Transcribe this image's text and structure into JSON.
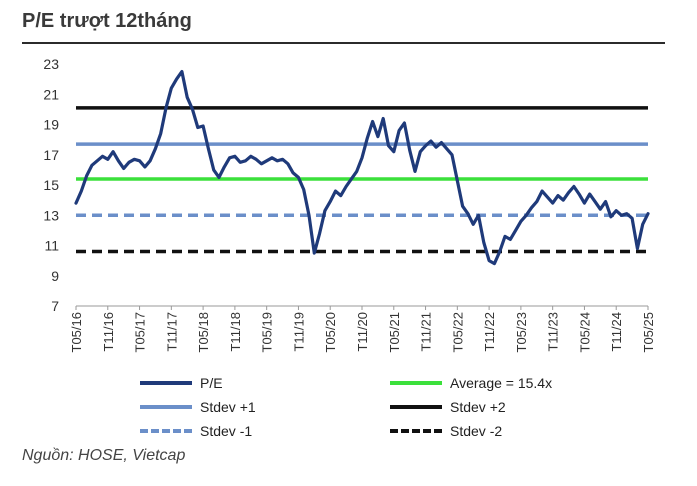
{
  "title": "P/E trượt 12tháng",
  "source": "Nguồn: HOSE, Vietcap",
  "colors": {
    "pe": "#1f3a7a",
    "average": "#3be03b",
    "stdev_plus1": "#6b8fc9",
    "stdev_plus2": "#111111",
    "stdev_minus1": "#6b8fc9",
    "stdev_minus2": "#111111"
  },
  "legend": [
    {
      "key": "pe",
      "label": "P/E",
      "style": "solid"
    },
    {
      "key": "average",
      "label": "Average = 15.4x",
      "style": "solid"
    },
    {
      "key": "stdev_plus1",
      "label": "Stdev +1",
      "style": "solid"
    },
    {
      "key": "stdev_plus2",
      "label": "Stdev +2",
      "style": "solid"
    },
    {
      "key": "stdev_minus1",
      "label": "Stdev -1",
      "style": "dashed"
    },
    {
      "key": "stdev_minus2",
      "label": "Stdev -2",
      "style": "dashed"
    }
  ],
  "chart_data": {
    "type": "line",
    "ylim": [
      7,
      23
    ],
    "yticks": [
      7,
      9,
      11,
      13,
      15,
      17,
      19,
      21,
      23
    ],
    "xlim": [
      0,
      108
    ],
    "xticks": [
      {
        "label": "T05/16",
        "t": 0
      },
      {
        "label": "T11/16",
        "t": 6
      },
      {
        "label": "T05/17",
        "t": 12
      },
      {
        "label": "T11/17",
        "t": 18
      },
      {
        "label": "T05/18",
        "t": 24
      },
      {
        "label": "T11/18",
        "t": 30
      },
      {
        "label": "T05/19",
        "t": 36
      },
      {
        "label": "T11/19",
        "t": 42
      },
      {
        "label": "T05/20",
        "t": 48
      },
      {
        "label": "T11/20",
        "t": 54
      },
      {
        "label": "T05/21",
        "t": 60
      },
      {
        "label": "T11/21",
        "t": 66
      },
      {
        "label": "T05/22",
        "t": 72
      },
      {
        "label": "T11/22",
        "t": 78
      },
      {
        "label": "T05/23",
        "t": 84
      },
      {
        "label": "T11/23",
        "t": 90
      },
      {
        "label": "T05/24",
        "t": 96
      },
      {
        "label": "T11/24",
        "t": 102
      },
      {
        "label": "T05/25",
        "t": 108
      }
    ],
    "reference_lines": [
      {
        "key": "stdev_plus2",
        "value": 20.1,
        "style": "solid"
      },
      {
        "key": "stdev_plus1",
        "value": 17.7,
        "style": "solid"
      },
      {
        "key": "average",
        "value": 15.4,
        "style": "solid"
      },
      {
        "key": "stdev_minus1",
        "value": 13.0,
        "style": "dashed"
      },
      {
        "key": "stdev_minus2",
        "value": 10.6,
        "style": "dashed"
      }
    ],
    "series": [
      {
        "key": "pe",
        "name": "P/E",
        "points": [
          [
            0,
            13.8
          ],
          [
            1,
            14.6
          ],
          [
            2,
            15.6
          ],
          [
            3,
            16.3
          ],
          [
            4,
            16.6
          ],
          [
            5,
            16.9
          ],
          [
            6,
            16.7
          ],
          [
            7,
            17.2
          ],
          [
            8,
            16.6
          ],
          [
            9,
            16.1
          ],
          [
            10,
            16.5
          ],
          [
            11,
            16.7
          ],
          [
            12,
            16.6
          ],
          [
            13,
            16.2
          ],
          [
            14,
            16.6
          ],
          [
            15,
            17.4
          ],
          [
            16,
            18.4
          ],
          [
            17,
            20.1
          ],
          [
            18,
            21.4
          ],
          [
            19,
            22.0
          ],
          [
            20,
            22.5
          ],
          [
            21,
            20.8
          ],
          [
            22,
            20.0
          ],
          [
            23,
            18.8
          ],
          [
            24,
            18.9
          ],
          [
            25,
            17.4
          ],
          [
            26,
            16.0
          ],
          [
            27,
            15.5
          ],
          [
            28,
            16.2
          ],
          [
            29,
            16.8
          ],
          [
            30,
            16.9
          ],
          [
            31,
            16.5
          ],
          [
            32,
            16.6
          ],
          [
            33,
            16.9
          ],
          [
            34,
            16.7
          ],
          [
            35,
            16.4
          ],
          [
            36,
            16.6
          ],
          [
            37,
            16.8
          ],
          [
            38,
            16.6
          ],
          [
            39,
            16.7
          ],
          [
            40,
            16.4
          ],
          [
            41,
            15.8
          ],
          [
            42,
            15.5
          ],
          [
            43,
            14.7
          ],
          [
            44,
            13.0
          ],
          [
            45,
            10.5
          ],
          [
            46,
            11.8
          ],
          [
            47,
            13.3
          ],
          [
            48,
            13.9
          ],
          [
            49,
            14.6
          ],
          [
            50,
            14.3
          ],
          [
            51,
            14.9
          ],
          [
            52,
            15.4
          ],
          [
            53,
            15.9
          ],
          [
            54,
            16.8
          ],
          [
            55,
            18.1
          ],
          [
            56,
            19.2
          ],
          [
            57,
            18.2
          ],
          [
            58,
            19.4
          ],
          [
            59,
            17.6
          ],
          [
            60,
            17.2
          ],
          [
            61,
            18.6
          ],
          [
            62,
            19.1
          ],
          [
            63,
            17.3
          ],
          [
            64,
            15.9
          ],
          [
            65,
            17.2
          ],
          [
            66,
            17.6
          ],
          [
            67,
            17.9
          ],
          [
            68,
            17.5
          ],
          [
            69,
            17.8
          ],
          [
            70,
            17.4
          ],
          [
            71,
            17.0
          ],
          [
            72,
            15.3
          ],
          [
            73,
            13.6
          ],
          [
            74,
            13.1
          ],
          [
            75,
            12.4
          ],
          [
            76,
            13.0
          ],
          [
            77,
            11.2
          ],
          [
            78,
            10.0
          ],
          [
            79,
            9.8
          ],
          [
            80,
            10.6
          ],
          [
            81,
            11.6
          ],
          [
            82,
            11.4
          ],
          [
            83,
            12.0
          ],
          [
            84,
            12.6
          ],
          [
            85,
            13.0
          ],
          [
            86,
            13.5
          ],
          [
            87,
            13.9
          ],
          [
            88,
            14.6
          ],
          [
            89,
            14.2
          ],
          [
            90,
            13.8
          ],
          [
            91,
            14.3
          ],
          [
            92,
            14.0
          ],
          [
            93,
            14.5
          ],
          [
            94,
            14.9
          ],
          [
            95,
            14.4
          ],
          [
            96,
            13.8
          ],
          [
            97,
            14.4
          ],
          [
            98,
            13.9
          ],
          [
            99,
            13.4
          ],
          [
            100,
            13.9
          ],
          [
            101,
            12.9
          ],
          [
            102,
            13.3
          ],
          [
            103,
            13.0
          ],
          [
            104,
            13.1
          ],
          [
            105,
            12.8
          ],
          [
            106,
            10.8
          ],
          [
            107,
            12.4
          ],
          [
            108,
            13.1
          ]
        ]
      }
    ]
  }
}
